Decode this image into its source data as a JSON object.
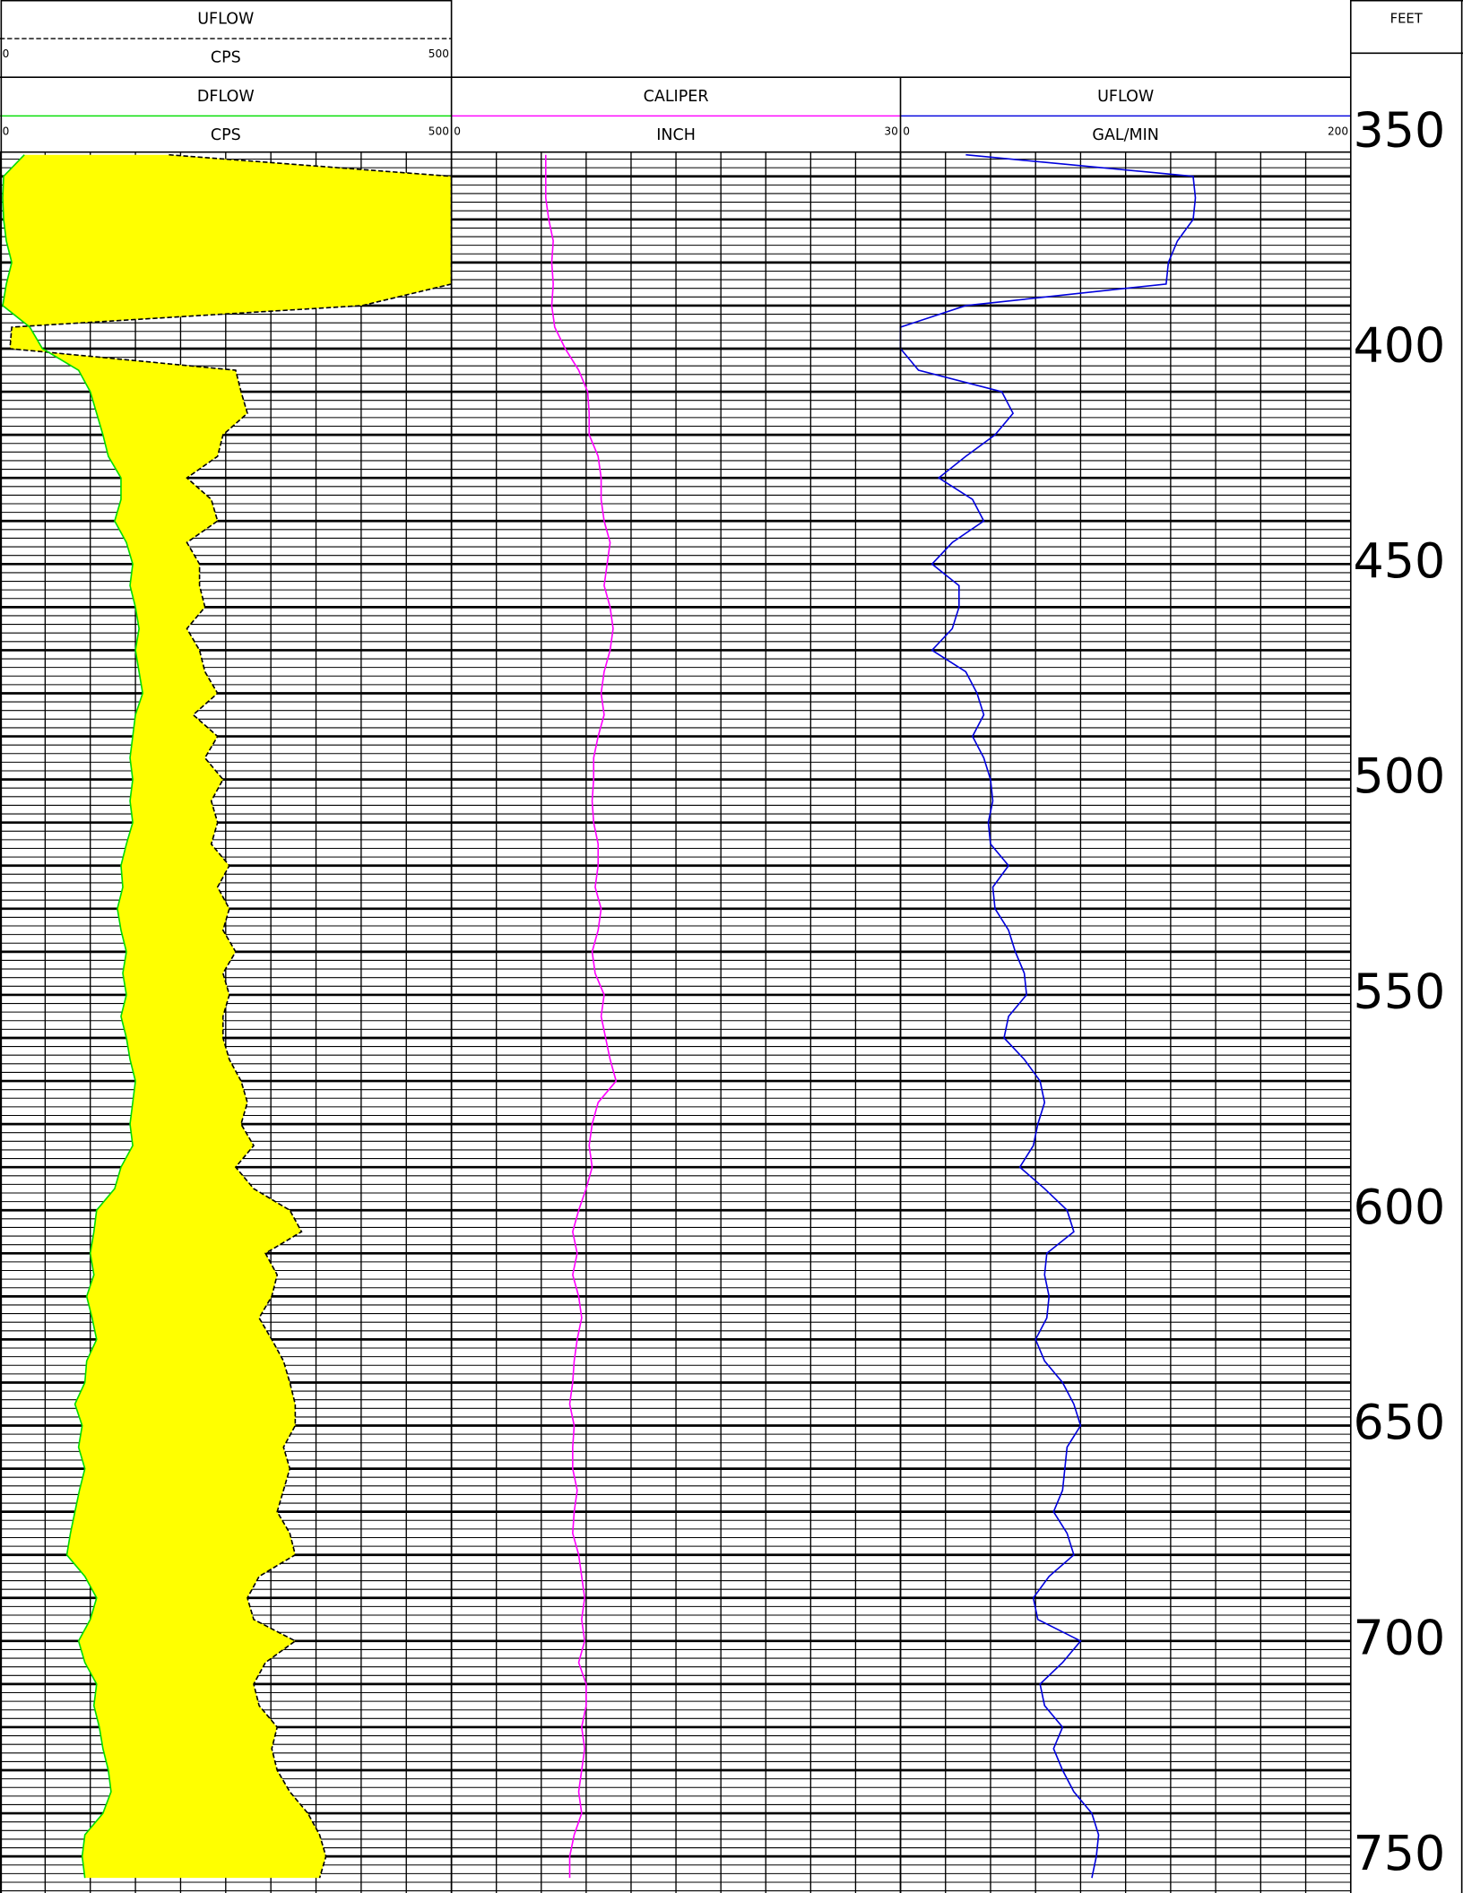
{
  "chart_data": {
    "type": "well_log",
    "depth_label": "FEET",
    "ylim": [
      337,
      758.5
    ],
    "yticks": [
      350,
      400,
      450,
      500,
      550,
      600,
      650,
      700,
      750
    ],
    "grid_minor_step": 2,
    "grid_major_step": 10,
    "depth": [
      355,
      360,
      365,
      370,
      375,
      380,
      385,
      390,
      395,
      400,
      405,
      410,
      415,
      420,
      425,
      430,
      435,
      440,
      445,
      450,
      455,
      460,
      465,
      470,
      475,
      480,
      485,
      490,
      495,
      500,
      505,
      510,
      515,
      520,
      525,
      530,
      535,
      540,
      545,
      550,
      555,
      560,
      565,
      570,
      575,
      580,
      585,
      590,
      595,
      600,
      605,
      610,
      615,
      620,
      625,
      630,
      635,
      640,
      645,
      650,
      655,
      660,
      665,
      670,
      675,
      680,
      685,
      690,
      695,
      700,
      705,
      710,
      715,
      720,
      725,
      730,
      735,
      740,
      745,
      750,
      755
    ],
    "tracks": [
      {
        "xticks": [
          0,
          50,
          100,
          150,
          200,
          250,
          300,
          350,
          400,
          450,
          500
        ],
        "fill_color": "#ffff00",
        "curves": [
          {
            "name": "UFLOW",
            "unit": "CPS",
            "color": "#000000",
            "dash": true,
            "xlim": [
              0,
              500
            ],
            "values": [
              187,
              500,
              500,
              500,
              500,
              500,
              500,
              401,
              13,
              11,
              261,
              267,
              274,
              247,
              241,
              207,
              234,
              241,
              207,
              221,
              221,
              227,
              207,
              221,
              227,
              241,
              214,
              241,
              227,
              247,
              234,
              241,
              234,
              254,
              241,
              254,
              247,
              261,
              247,
              254,
              247,
              247,
              254,
              267,
              274,
              267,
              281,
              261,
              281,
              321,
              334,
              294,
              307,
              301,
              287,
              301,
              314,
              321,
              327,
              327,
              314,
              321,
              314,
              307,
              321,
              327,
              287,
              274,
              281,
              327,
              294,
              281,
              287,
              307,
              301,
              307,
              321,
              341,
              354,
              361,
              354
            ]
          },
          {
            "name": "DFLOW",
            "unit": "CPS",
            "color": "#00dd00",
            "dash": false,
            "xlim": [
              0,
              500
            ],
            "values": [
              27,
              4,
              3,
              4,
              7,
              13,
              7,
              3,
              33,
              47,
              87,
              100,
              107,
              114,
              120,
              134,
              134,
              127,
              140,
              147,
              144,
              150,
              154,
              150,
              154,
              158,
              150,
              147,
              144,
              147,
              144,
              147,
              140,
              134,
              136,
              130,
              134,
              140,
              136,
              140,
              134,
              140,
              144,
              150,
              147,
              144,
              147,
              134,
              127,
              107,
              104,
              100,
              104,
              96,
              102,
              107,
              96,
              94,
              83,
              91,
              87,
              94,
              88,
              83,
              78,
              74,
              94,
              107,
              100,
              87,
              94,
              107,
              104,
              110,
              114,
              120,
              123,
              114,
              94,
              91,
              94
            ]
          }
        ]
      },
      {
        "xticks": [
          0,
          3,
          6,
          9,
          12,
          15,
          18,
          21,
          24,
          27,
          30
        ],
        "curves": [
          {
            "name": "CALIPER",
            "unit": "INCH",
            "color": "#ff00ff",
            "dash": false,
            "xlim": [
              0,
              30
            ],
            "values": [
              6.3,
              6.3,
              6.3,
              6.5,
              6.8,
              6.7,
              6.8,
              6.7,
              6.9,
              7.6,
              8.5,
              9.1,
              9.2,
              9.2,
              9.8,
              10.0,
              10.0,
              10.2,
              10.6,
              10.4,
              10.2,
              10.6,
              10.8,
              10.6,
              10.2,
              10.0,
              10.2,
              9.8,
              9.5,
              9.5,
              9.4,
              9.5,
              9.8,
              9.8,
              9.6,
              10.0,
              9.8,
              9.4,
              9.6,
              10.2,
              10.0,
              10.3,
              10.6,
              11.0,
              9.8,
              9.4,
              9.2,
              9.4,
              9.0,
              8.5,
              8.1,
              8.4,
              8.1,
              8.5,
              8.7,
              8.4,
              8.2,
              8.1,
              7.9,
              8.2,
              8.1,
              8.1,
              8.4,
              8.2,
              8.1,
              8.5,
              8.7,
              8.9,
              8.7,
              8.9,
              8.5,
              9.0,
              9.0,
              8.7,
              8.9,
              8.7,
              8.5,
              8.7,
              8.2,
              7.9,
              7.9
            ]
          }
        ]
      },
      {
        "xticks": [
          0,
          20,
          40,
          60,
          80,
          100,
          120,
          140,
          160,
          180,
          200
        ],
        "curves": [
          {
            "name": "UFLOW",
            "unit": "GAL/MIN",
            "color": "#0000dd",
            "dash": false,
            "xlim": [
              0,
              200
            ],
            "values": [
              29,
              130,
              131,
              130,
              123,
              119,
              118,
              29,
              0,
              0,
              8,
              45,
              50,
              42,
              29,
              17,
              32,
              37,
              23,
              14,
              26,
              26,
              23,
              14,
              29,
              34,
              37,
              32,
              37,
              40,
              41,
              39,
              40,
              48,
              41,
              42,
              48,
              51,
              55,
              56,
              48,
              46,
              55,
              62,
              64,
              61,
              59,
              53,
              64,
              74,
              77,
              65,
              64,
              66,
              65,
              60,
              64,
              72,
              77,
              80,
              74,
              73,
              72,
              68,
              74,
              77,
              66,
              59,
              61,
              80,
              72,
              62,
              64,
              72,
              68,
              72,
              77,
              85,
              88,
              87,
              85
            ]
          }
        ]
      }
    ]
  }
}
